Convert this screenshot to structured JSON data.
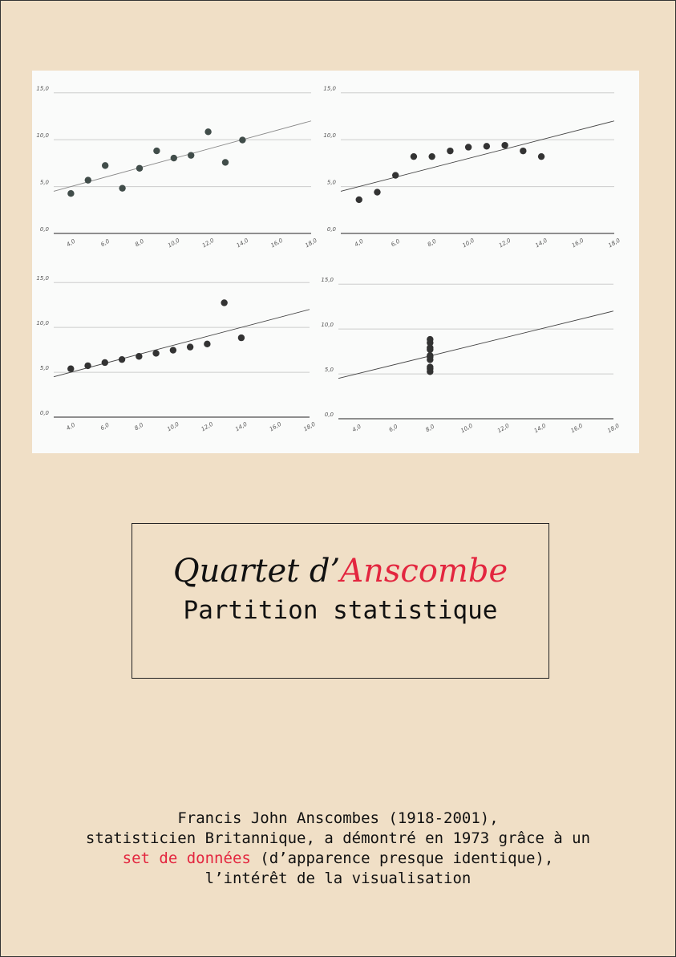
{
  "chart_data": [
    {
      "type": "scatter",
      "color": "#414d4a",
      "grid": true,
      "x": [
        4,
        5,
        6,
        7,
        8,
        9,
        10,
        11,
        12,
        13,
        14
      ],
      "values": [
        4.26,
        5.68,
        7.24,
        4.82,
        6.95,
        8.81,
        8.04,
        8.33,
        10.84,
        7.58,
        9.96
      ],
      "trend_line": {
        "x": [
          3,
          18
        ],
        "y": [
          4.5,
          12
        ]
      },
      "xlim": [
        3,
        18
      ],
      "ylim": [
        0,
        16
      ],
      "xticks": [
        {
          "value": 4,
          "label": "4,0"
        },
        {
          "value": 6,
          "label": "6,0"
        },
        {
          "value": 8,
          "label": "8,0"
        },
        {
          "value": 10,
          "label": "10,0"
        },
        {
          "value": 12,
          "label": "12,0"
        },
        {
          "value": 14,
          "label": "14,0"
        },
        {
          "value": 16,
          "label": "16,0"
        },
        {
          "value": 18,
          "label": "18,0"
        }
      ],
      "yticks": [
        {
          "value": 0,
          "label": "0,0"
        },
        {
          "value": 5,
          "label": "5,0"
        },
        {
          "value": 10,
          "label": "10,0"
        },
        {
          "value": 15,
          "label": "15,0"
        }
      ]
    },
    {
      "type": "scatter",
      "color": "#333333",
      "grid": true,
      "x": [
        4,
        5,
        6,
        7,
        8,
        9,
        10,
        11,
        12,
        13,
        14
      ],
      "values": [
        3.6,
        4.4,
        6.2,
        8.2,
        8.2,
        8.8,
        9.2,
        9.3,
        9.4,
        8.8,
        8.2
      ],
      "trend_line": {
        "x": [
          3,
          18
        ],
        "y": [
          4.5,
          12
        ]
      },
      "xlim": [
        3,
        18
      ],
      "ylim": [
        0,
        16
      ],
      "xticks": [
        {
          "value": 4,
          "label": "4,0"
        },
        {
          "value": 6,
          "label": "6,0"
        },
        {
          "value": 8,
          "label": "8,0"
        },
        {
          "value": 10,
          "label": "10,0"
        },
        {
          "value": 12,
          "label": "12,0"
        },
        {
          "value": 14,
          "label": "14,0"
        },
        {
          "value": 16,
          "label": "16,0"
        },
        {
          "value": 18,
          "label": "18,0"
        }
      ],
      "yticks": [
        {
          "value": 0,
          "label": "0,0"
        },
        {
          "value": 5,
          "label": "5,0"
        },
        {
          "value": 10,
          "label": "10,0"
        },
        {
          "value": 15,
          "label": "15,0"
        }
      ]
    },
    {
      "type": "scatter",
      "color": "#333333",
      "grid": true,
      "x": [
        4,
        5,
        6,
        7,
        8,
        9,
        10,
        11,
        12,
        13,
        14
      ],
      "values": [
        5.39,
        5.73,
        6.08,
        6.42,
        6.77,
        7.11,
        7.46,
        7.81,
        8.15,
        12.74,
        8.84
      ],
      "trend_line": {
        "x": [
          3,
          18
        ],
        "y": [
          4.5,
          12
        ]
      },
      "xlim": [
        3,
        18
      ],
      "ylim": [
        0,
        16
      ],
      "xticks": [
        {
          "value": 4,
          "label": "4,0"
        },
        {
          "value": 6,
          "label": "6,0"
        },
        {
          "value": 8,
          "label": "8,0"
        },
        {
          "value": 10,
          "label": "10,0"
        },
        {
          "value": 12,
          "label": "12,0"
        },
        {
          "value": 14,
          "label": "14,0"
        },
        {
          "value": 16,
          "label": "16,0"
        },
        {
          "value": 18,
          "label": "18,0"
        }
      ],
      "yticks": [
        {
          "value": 0,
          "label": "0,0"
        },
        {
          "value": 5,
          "label": "5,0"
        },
        {
          "value": 10,
          "label": "10,0"
        },
        {
          "value": 15,
          "label": "15,0"
        }
      ]
    },
    {
      "type": "scatter",
      "color": "#333333",
      "grid": true,
      "x": [
        8,
        8,
        8,
        8,
        8,
        8,
        8,
        8,
        8,
        8
      ],
      "values": [
        5.25,
        5.56,
        5.76,
        6.58,
        6.89,
        7.04,
        7.71,
        7.91,
        8.47,
        8.84
      ],
      "trend_line": {
        "x": [
          3,
          18
        ],
        "y": [
          4.5,
          12
        ]
      },
      "xlim": [
        3,
        18
      ],
      "ylim": [
        0,
        16
      ],
      "xticks": [
        {
          "value": 4,
          "label": "4,0"
        },
        {
          "value": 6,
          "label": "6,0"
        },
        {
          "value": 8,
          "label": "8,0"
        },
        {
          "value": 10,
          "label": "10,0"
        },
        {
          "value": 12,
          "label": "12,0"
        },
        {
          "value": 14,
          "label": "14,0"
        },
        {
          "value": 16,
          "label": "16,0"
        },
        {
          "value": 18,
          "label": "18,0"
        }
      ],
      "yticks": [
        {
          "value": 0,
          "label": "0,0"
        },
        {
          "value": 5,
          "label": "5,0"
        },
        {
          "value": 10,
          "label": "10,0"
        },
        {
          "value": 15,
          "label": "15,0"
        }
      ]
    }
  ],
  "title": {
    "part1": "Quartet d’",
    "part2": "Anscombe",
    "subtitle": "Partition statistique"
  },
  "description": {
    "line1": "Francis John Anscombes (1918-2001),",
    "line2": "statisticien Britannique, a démontré en 1973 grâce à un",
    "line3_highlight": "set de données",
    "line3_rest": " (d’apparence presque identique),",
    "line4": "l’intérêt de la visualisation"
  }
}
